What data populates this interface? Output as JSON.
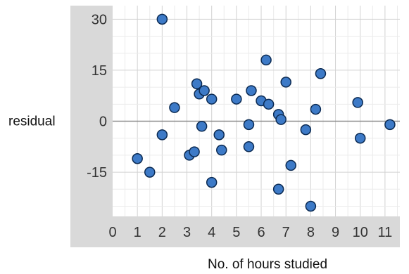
{
  "chart_data": {
    "type": "scatter",
    "title": "",
    "xlabel": "No. of hours studied",
    "ylabel": "residual",
    "xlim": [
      0,
      11.6
    ],
    "ylim": [
      -28,
      34
    ],
    "x_ticks": [
      0,
      1,
      2,
      3,
      4,
      5,
      6,
      7,
      8,
      9,
      10,
      11
    ],
    "y_ticks": [
      -15,
      0,
      15,
      30
    ],
    "grid": true,
    "reference_line_y": 0,
    "colors": {
      "point_fill": "#3d7ac7",
      "point_stroke": "#0b2a52",
      "axis_panel": "#d9d9d9",
      "grid": "#dcdcdc"
    },
    "points": [
      {
        "x": 1.0,
        "y": -11
      },
      {
        "x": 1.5,
        "y": -15
      },
      {
        "x": 2.0,
        "y": 30
      },
      {
        "x": 2.0,
        "y": -4
      },
      {
        "x": 2.5,
        "y": 4
      },
      {
        "x": 3.1,
        "y": -10
      },
      {
        "x": 3.3,
        "y": -9
      },
      {
        "x": 3.4,
        "y": 11
      },
      {
        "x": 3.5,
        "y": 8
      },
      {
        "x": 3.6,
        "y": -1.5
      },
      {
        "x": 3.7,
        "y": 9
      },
      {
        "x": 4.0,
        "y": 6.5
      },
      {
        "x": 4.0,
        "y": -18
      },
      {
        "x": 4.3,
        "y": -4
      },
      {
        "x": 4.4,
        "y": -8.5
      },
      {
        "x": 5.0,
        "y": 6.5
      },
      {
        "x": 5.5,
        "y": -1
      },
      {
        "x": 5.5,
        "y": -7.5
      },
      {
        "x": 5.6,
        "y": 9
      },
      {
        "x": 6.0,
        "y": 6
      },
      {
        "x": 6.2,
        "y": 18
      },
      {
        "x": 6.3,
        "y": 5
      },
      {
        "x": 6.7,
        "y": 2
      },
      {
        "x": 6.7,
        "y": -20
      },
      {
        "x": 6.8,
        "y": 0.5
      },
      {
        "x": 7.0,
        "y": 11.5
      },
      {
        "x": 7.2,
        "y": -13
      },
      {
        "x": 7.8,
        "y": -2.5
      },
      {
        "x": 8.0,
        "y": -25
      },
      {
        "x": 8.2,
        "y": 3.5
      },
      {
        "x": 8.4,
        "y": 14
      },
      {
        "x": 9.9,
        "y": 5.5
      },
      {
        "x": 10.0,
        "y": -5
      },
      {
        "x": 11.2,
        "y": -1
      }
    ]
  }
}
